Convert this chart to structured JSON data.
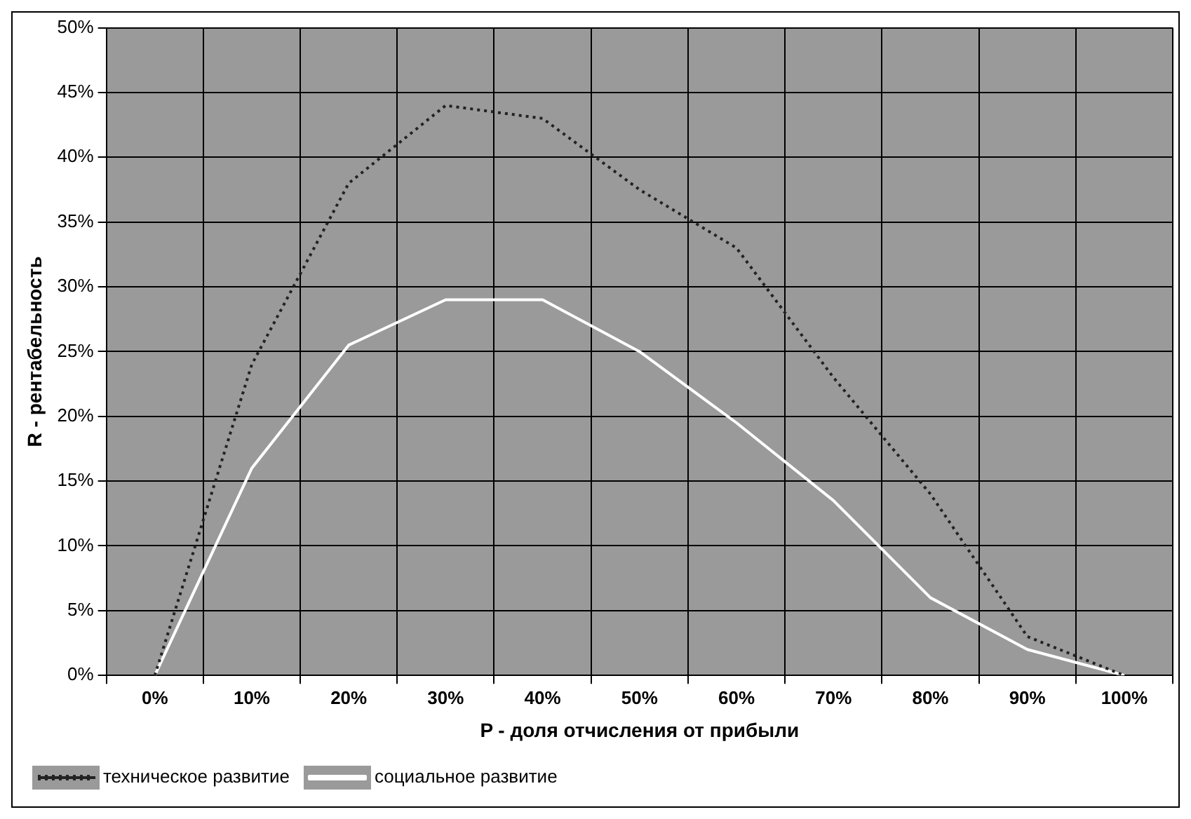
{
  "chart_data": {
    "type": "line",
    "xlabel": "P - доля отчисления от прибыли",
    "ylabel": "R - рентабельность",
    "categories": [
      "0%",
      "10%",
      "20%",
      "30%",
      "40%",
      "50%",
      "60%",
      "70%",
      "80%",
      "90%",
      "100%"
    ],
    "series": [
      {
        "name": "техническое развитие",
        "color": "#222222",
        "line_style": "dotted",
        "values": [
          0,
          24,
          38,
          44,
          43,
          37.5,
          33,
          23,
          14,
          3,
          0
        ]
      },
      {
        "name": "социальное развитие",
        "color": "#ffffff",
        "line_style": "solid",
        "values": [
          0,
          16,
          25.5,
          29,
          29,
          25,
          19.5,
          13.5,
          6,
          2,
          0
        ]
      }
    ],
    "ylim": [
      0,
      50
    ],
    "yticks": [
      {
        "value": 0,
        "label": "0%"
      },
      {
        "value": 5,
        "label": "5%"
      },
      {
        "value": 10,
        "label": "10%"
      },
      {
        "value": 15,
        "label": "15%"
      },
      {
        "value": 20,
        "label": "20%"
      },
      {
        "value": 25,
        "label": "25%"
      },
      {
        "value": 30,
        "label": "30%"
      },
      {
        "value": 35,
        "label": "35%"
      },
      {
        "value": 40,
        "label": "40%"
      },
      {
        "value": 45,
        "label": "45%"
      },
      {
        "value": 50,
        "label": "50%"
      }
    ],
    "grid": true,
    "legend": "bottom left",
    "marker": "none"
  }
}
